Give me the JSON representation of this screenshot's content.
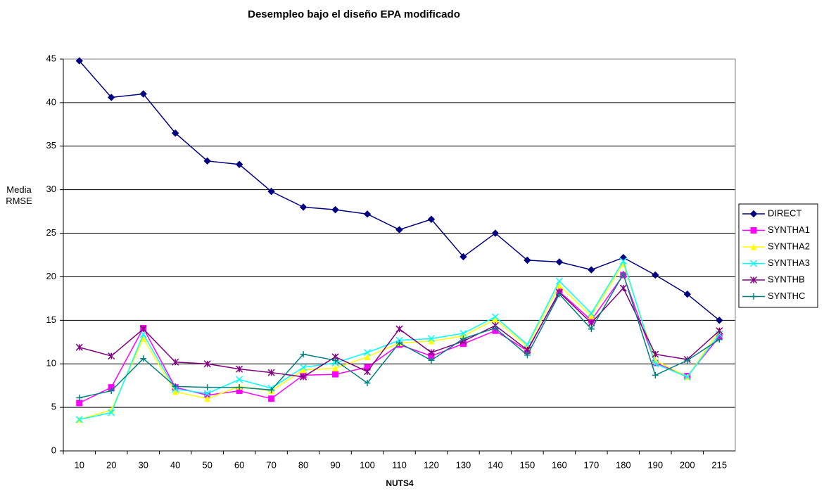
{
  "chart_data": {
    "type": "line",
    "title": "Desempleo bajo el diseño EPA modificado",
    "x_label": "NUTS4",
    "y_label": "Media RMSE",
    "categories": [
      "10",
      "20",
      "30",
      "40",
      "50",
      "60",
      "70",
      "80",
      "90",
      "100",
      "110",
      "120",
      "130",
      "140",
      "150",
      "160",
      "170",
      "180",
      "190",
      "200",
      "215"
    ],
    "ylim": [
      0,
      45
    ],
    "yticks": [
      0,
      5,
      10,
      15,
      20,
      25,
      30,
      35,
      40,
      45
    ],
    "grid": true,
    "legend": "right",
    "series": [
      {
        "name": "DIRECT",
        "color": "#000080",
        "marker": "diamond",
        "values": [
          44.8,
          40.6,
          41.0,
          36.5,
          33.3,
          32.9,
          29.8,
          28.0,
          27.7,
          27.2,
          25.4,
          26.6,
          22.3,
          25.0,
          21.9,
          21.7,
          20.8,
          22.2,
          20.2,
          18.0,
          15.0
        ]
      },
      {
        "name": "SYNTHA1",
        "color": "#ff00ff",
        "marker": "square",
        "values": [
          5.5,
          7.3,
          14.1,
          7.3,
          6.4,
          6.9,
          6.0,
          8.7,
          8.8,
          9.6,
          12.2,
          10.9,
          12.3,
          13.8,
          11.5,
          18.3,
          15.0,
          20.2,
          10.1,
          8.6,
          13.1
        ]
      },
      {
        "name": "SYNTHA2",
        "color": "#ffff00",
        "marker": "triangle",
        "values": [
          3.6,
          4.7,
          12.9,
          6.8,
          6.0,
          7.4,
          6.9,
          9.3,
          9.5,
          10.8,
          12.4,
          12.6,
          13.2,
          15.1,
          12.0,
          19.0,
          15.5,
          21.5,
          10.4,
          8.5,
          13.8
        ]
      },
      {
        "name": "SYNTHA3",
        "color": "#00ffff",
        "marker": "x",
        "values": [
          3.6,
          4.4,
          13.4,
          7.1,
          6.6,
          8.2,
          7.2,
          9.6,
          10.1,
          11.3,
          12.7,
          12.9,
          13.5,
          15.4,
          12.2,
          19.5,
          15.8,
          21.8,
          10.0,
          8.5,
          13.4
        ]
      },
      {
        "name": "SYNTHB",
        "color": "#800080",
        "marker": "star",
        "values": [
          11.9,
          10.9,
          14.0,
          10.2,
          10.0,
          9.4,
          9.0,
          8.5,
          10.8,
          9.1,
          14.0,
          11.3,
          12.6,
          14.4,
          11.6,
          18.2,
          14.7,
          18.7,
          11.1,
          10.5,
          13.8
        ]
      },
      {
        "name": "SYNTHC",
        "color": "#008080",
        "marker": "plus",
        "values": [
          6.1,
          6.9,
          10.6,
          7.4,
          7.3,
          7.3,
          7.0,
          11.1,
          10.4,
          7.8,
          12.4,
          10.4,
          12.9,
          14.1,
          11.0,
          18.0,
          14.0,
          20.3,
          8.7,
          10.4,
          12.8
        ]
      }
    ]
  }
}
